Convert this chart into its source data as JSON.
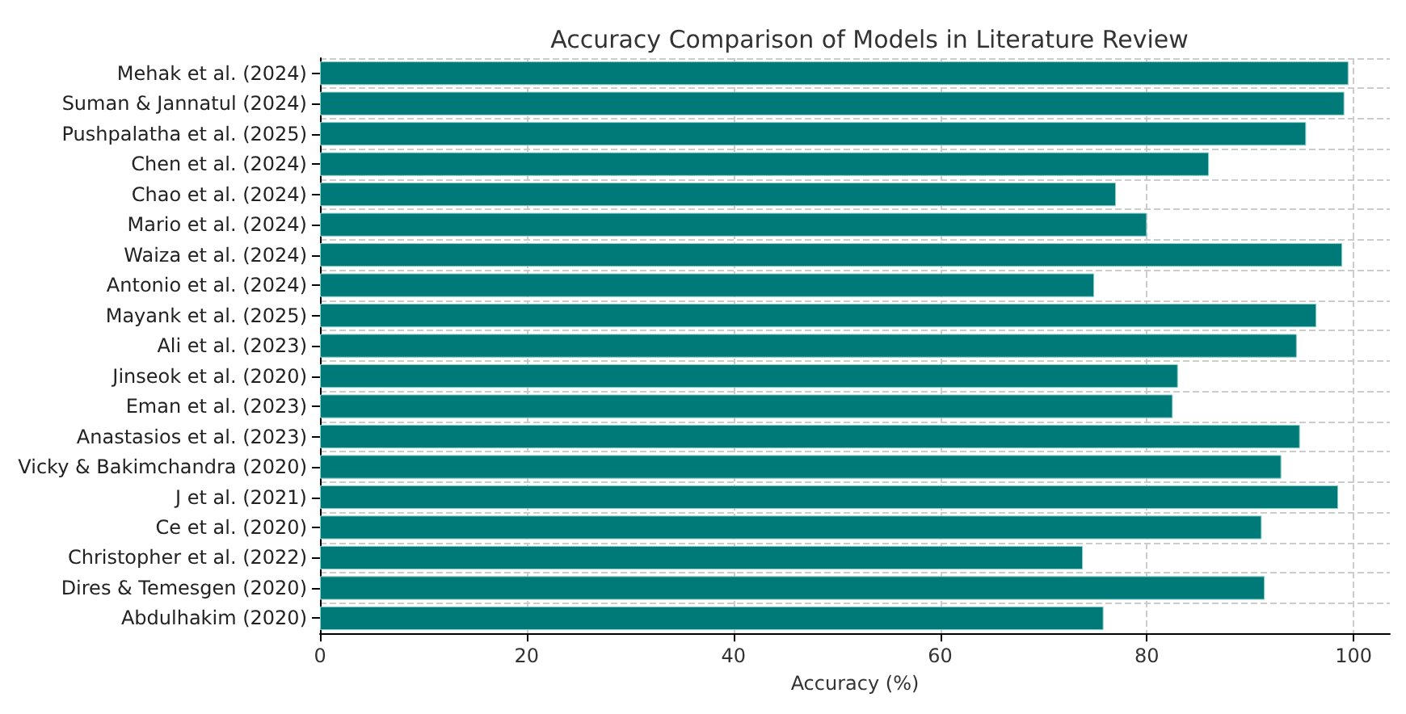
{
  "chart_data": {
    "type": "bar",
    "orientation": "horizontal",
    "title": "Accuracy Comparison of Models in Literature Review",
    "xlabel": "Accuracy (%)",
    "categories": [
      "Mehak et al. (2024)",
      "Suman & Jannatul (2024)",
      "Pushpalatha et al. (2025)",
      "Chen et al. (2024)",
      "Chao et al. (2024)",
      "Mario et al. (2024)",
      "Waiza et al. (2024)",
      "Antonio et al. (2024)",
      "Mayank et al. (2025)",
      "Ali et al. (2023)",
      "Jinseok et al. (2020)",
      "Eman et al. (2023)",
      "Anastasios et al. (2023)",
      "Vicky & Bakimchandra (2020)",
      "J et al. (2021)",
      "Ce et al. (2020)",
      "Christopher et al. (2022)",
      "Dires & Temesgen (2020)",
      "Abdulhakim (2020)"
    ],
    "values": [
      99.5,
      99.1,
      95.4,
      86.0,
      77.0,
      80.0,
      98.9,
      74.9,
      96.4,
      94.5,
      83.0,
      82.5,
      94.8,
      93.0,
      98.5,
      91.1,
      73.8,
      91.4,
      75.8
    ],
    "color": "#007a78",
    "xlim": [
      0,
      103.5
    ],
    "xticks": [
      0,
      20,
      40,
      60,
      80,
      100
    ],
    "grid": true
  }
}
